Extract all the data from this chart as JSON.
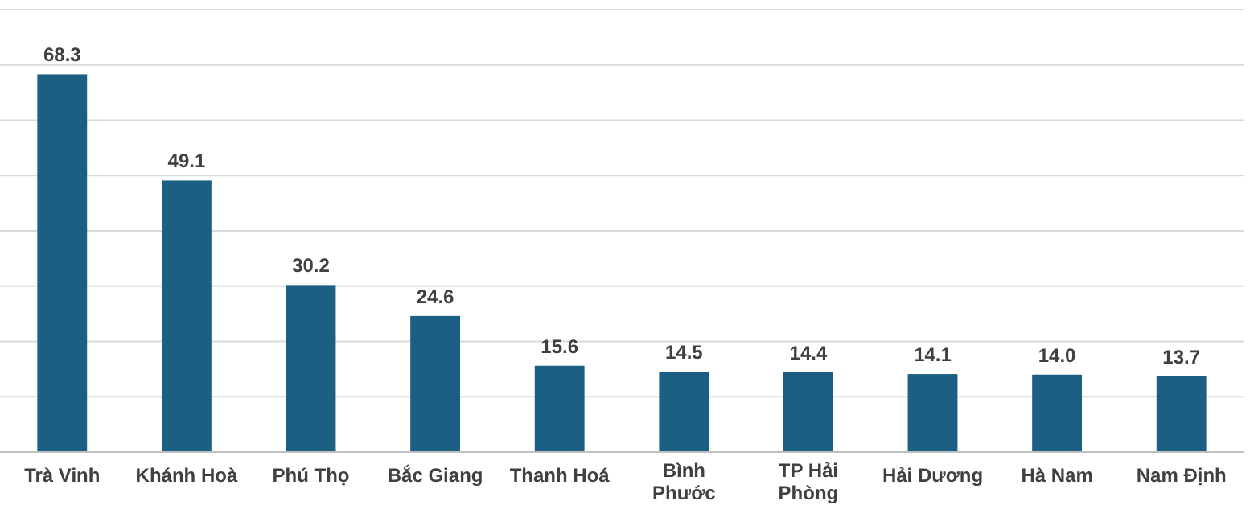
{
  "chart_data": {
    "type": "bar",
    "categories": [
      "Trà Vinh",
      "Khánh Hoà",
      "Phú Thọ",
      "Bắc Giang",
      "Thanh Hoá",
      "Bình Phước",
      "TP Hải Phòng",
      "Hải Dương",
      "Hà Nam",
      "Nam Định"
    ],
    "values": [
      68.3,
      49.1,
      30.2,
      24.6,
      15.6,
      14.5,
      14.4,
      14.1,
      14.0,
      13.7
    ],
    "value_labels": [
      "68.3",
      "49.1",
      "30.2",
      "24.6",
      "15.6",
      "14.5",
      "14.4",
      "14.1",
      "14.0",
      "13.7"
    ],
    "color": "#1b5f82",
    "grid": "y",
    "tick_labels": "x",
    "ylim": [
      0,
      80
    ],
    "yticks": [
      {
        "value": 0,
        "label": null
      },
      {
        "value": 10,
        "label": null
      },
      {
        "value": 20,
        "label": null
      },
      {
        "value": 30,
        "label": null
      },
      {
        "value": 40,
        "label": null
      },
      {
        "value": 50,
        "label": null
      },
      {
        "value": 60,
        "label": null
      },
      {
        "value": 70,
        "label": null
      },
      {
        "value": 80,
        "label": null
      }
    ]
  }
}
